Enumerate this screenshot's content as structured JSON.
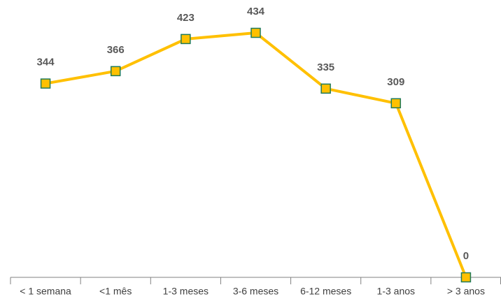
{
  "chart_data": {
    "type": "line",
    "categories": [
      "< 1 semana",
      "<1 mês",
      "1-3 meses",
      "3-6 meses",
      "6-12 meses",
      "1-3 anos",
      "> 3 anos"
    ],
    "values": [
      344,
      366,
      423,
      434,
      335,
      309,
      0
    ],
    "color": "#FFC000",
    "marker_color": "#FFC000",
    "marker_edge_color": "#1F7A5A",
    "ylim": [
      0,
      434
    ]
  }
}
